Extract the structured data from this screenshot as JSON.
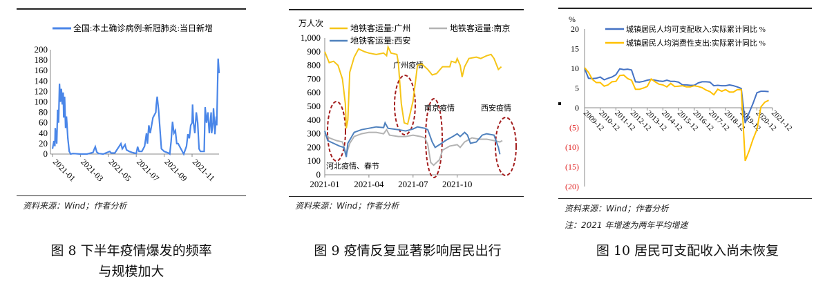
{
  "figures": [
    {
      "caption_line1": "图 8  下半年疫情爆发的频率",
      "caption_line2": "与规模加大",
      "source": "资料来源：Wind；作者分析"
    },
    {
      "caption_line1": "图 9    疫情反复显著影响居民出行",
      "source": "资料来源：Wind；作者分析"
    },
    {
      "caption_line1": "图 10  居民可支配收入尚未恢复",
      "source": "资料来源：Wind；作者分析",
      "note": "注：2021 年增速为两年平均增速"
    }
  ],
  "chart_data": [
    {
      "type": "line",
      "legend": "top-center",
      "ylim": [
        0,
        200
      ],
      "yticks": [
        "0",
        "20",
        "40",
        "60",
        "80",
        "100",
        "120",
        "140",
        "160",
        "180",
        "200"
      ],
      "xticks": [
        "2021-01",
        "2021-03",
        "2021-05",
        "2021-07",
        "2021-09",
        "2021-11"
      ],
      "grid": false,
      "series": [
        {
          "name": "全国:本土确诊病例:新冠肺炎:当日新增",
          "color": "#4a86e8",
          "points": [
            [
              "2021-01-01",
              10
            ],
            [
              "2021-01-04",
              25
            ],
            [
              "2021-01-06",
              15
            ],
            [
              "2021-01-07",
              50
            ],
            [
              "2021-01-10",
              20
            ],
            [
              "2021-01-12",
              85
            ],
            [
              "2021-01-14",
              60
            ],
            [
              "2021-01-16",
              135
            ],
            [
              "2021-01-18",
              100
            ],
            [
              "2021-01-20",
              125
            ],
            [
              "2021-01-22",
              95
            ],
            [
              "2021-01-24",
              118
            ],
            [
              "2021-01-25",
              70
            ],
            [
              "2021-01-27",
              110
            ],
            [
              "2021-01-29",
              50
            ],
            [
              "2021-02-01",
              72
            ],
            [
              "2021-02-04",
              30
            ],
            [
              "2021-02-07",
              5
            ],
            [
              "2021-02-10",
              0
            ],
            [
              "2021-02-15",
              1
            ],
            [
              "2021-03-01",
              0
            ],
            [
              "2021-03-15",
              0
            ],
            [
              "2021-03-28",
              3
            ],
            [
              "2021-04-01",
              10
            ],
            [
              "2021-04-03",
              14
            ],
            [
              "2021-04-06",
              4
            ],
            [
              "2021-04-10",
              1
            ],
            [
              "2021-04-20",
              0
            ],
            [
              "2021-05-04",
              5
            ],
            [
              "2021-05-07",
              2
            ],
            [
              "2021-05-15",
              2
            ],
            [
              "2021-05-28",
              20
            ],
            [
              "2021-06-01",
              10
            ],
            [
              "2021-06-07",
              18
            ],
            [
              "2021-06-10",
              8
            ],
            [
              "2021-06-16",
              5
            ],
            [
              "2021-06-22",
              3
            ],
            [
              "2021-07-01",
              1
            ],
            [
              "2021-07-04",
              14
            ],
            [
              "2021-07-07",
              5
            ],
            [
              "2021-07-13",
              5
            ],
            [
              "2021-07-19",
              15
            ],
            [
              "2021-07-23",
              40
            ],
            [
              "2021-07-25",
              20
            ],
            [
              "2021-07-28",
              55
            ],
            [
              "2021-08-01",
              40
            ],
            [
              "2021-08-07",
              70
            ],
            [
              "2021-08-13",
              80
            ],
            [
              "2021-08-14",
              95
            ],
            [
              "2021-08-16",
              110
            ],
            [
              "2021-08-19",
              85
            ],
            [
              "2021-08-25",
              10
            ],
            [
              "2021-09-01",
              5
            ],
            [
              "2021-09-10",
              2
            ],
            [
              "2021-09-13",
              0
            ],
            [
              "2021-09-16",
              25
            ],
            [
              "2021-09-19",
              62
            ],
            [
              "2021-09-22",
              40
            ],
            [
              "2021-09-25",
              45
            ],
            [
              "2021-09-28",
              20
            ],
            [
              "2021-10-01",
              20
            ],
            [
              "2021-10-07",
              10
            ],
            [
              "2021-10-13",
              0
            ],
            [
              "2021-10-19",
              15
            ],
            [
              "2021-10-22",
              38
            ],
            [
              "2021-10-25",
              30
            ],
            [
              "2021-10-28",
              55
            ],
            [
              "2021-11-01",
              60
            ],
            [
              "2021-11-02",
              95
            ],
            [
              "2021-11-04",
              60
            ],
            [
              "2021-11-07",
              40
            ],
            [
              "2021-11-10",
              80
            ],
            [
              "2021-11-13",
              60
            ],
            [
              "2021-11-16",
              10
            ],
            [
              "2021-11-19",
              5
            ],
            [
              "2021-11-27",
              5
            ],
            [
              "2021-11-29",
              90
            ],
            [
              "2021-12-02",
              60
            ],
            [
              "2021-12-05",
              80
            ],
            [
              "2021-12-08",
              40
            ],
            [
              "2021-12-12",
              80
            ],
            [
              "2021-12-13",
              40
            ],
            [
              "2021-12-16",
              60
            ],
            [
              "2021-12-17",
              88
            ],
            [
              "2021-12-19",
              60
            ],
            [
              "2021-12-20",
              38
            ],
            [
              "2021-12-23",
              72
            ],
            [
              "2021-12-24",
              55
            ],
            [
              "2021-12-26",
              140
            ],
            [
              "2021-12-27",
              183
            ],
            [
              "2021-12-29",
              155
            ]
          ]
        }
      ]
    },
    {
      "type": "line",
      "ylabel": "万人次",
      "legend": "top",
      "ylim": [
        0,
        1000
      ],
      "yticks": [
        "0",
        "100",
        "200",
        "300",
        "400",
        "500",
        "600",
        "700",
        "800",
        "900",
        "1,000"
      ],
      "xticks": [
        "2021-01",
        "2021-04",
        "2021-07",
        "2021-10"
      ],
      "grid": false,
      "annotations": [
        "广州疫情",
        "南京疫情",
        "西安疫情",
        "河北疫情、春节"
      ],
      "annotation_color": "#a31d1d",
      "series": [
        {
          "name": "地铁客运量:广州",
          "color": "#f5c518",
          "points": [
            [
              "2021-01-01",
              900
            ],
            [
              "2021-01-10",
              820
            ],
            [
              "2021-01-19",
              830
            ],
            [
              "2021-01-28",
              800
            ],
            [
              "2021-02-07",
              700
            ],
            [
              "2021-02-13",
              520
            ],
            [
              "2021-02-15",
              340
            ],
            [
              "2021-02-18",
              400
            ],
            [
              "2021-02-22",
              750
            ],
            [
              "2021-03-01",
              860
            ],
            [
              "2021-03-10",
              920
            ],
            [
              "2021-03-22",
              900
            ],
            [
              "2021-04-01",
              890
            ],
            [
              "2021-04-16",
              880
            ],
            [
              "2021-05-01",
              890
            ],
            [
              "2021-05-07",
              870
            ],
            [
              "2021-05-10",
              935
            ],
            [
              "2021-05-16",
              890
            ],
            [
              "2021-05-28",
              880
            ],
            [
              "2021-06-01",
              820
            ],
            [
              "2021-06-07",
              520
            ],
            [
              "2021-06-13",
              380
            ],
            [
              "2021-06-20",
              370
            ],
            [
              "2021-07-01",
              540
            ],
            [
              "2021-07-10",
              800
            ],
            [
              "2021-07-19",
              810
            ],
            [
              "2021-08-01",
              770
            ],
            [
              "2021-08-10",
              730
            ],
            [
              "2021-08-19",
              740
            ],
            [
              "2021-09-01",
              790
            ],
            [
              "2021-09-16",
              790
            ],
            [
              "2021-09-19",
              830
            ],
            [
              "2021-09-28",
              820
            ],
            [
              "2021-10-01",
              850
            ],
            [
              "2021-10-07",
              800
            ],
            [
              "2021-10-11",
              715
            ],
            [
              "2021-10-16",
              790
            ],
            [
              "2021-10-25",
              850
            ],
            [
              "2021-11-10",
              860
            ],
            [
              "2021-11-19",
              850
            ],
            [
              "2021-12-01",
              870
            ],
            [
              "2021-12-10",
              880
            ],
            [
              "2021-12-16",
              850
            ],
            [
              "2021-12-25",
              770
            ],
            [
              "2021-12-31",
              790
            ]
          ]
        },
        {
          "name": "地铁客运量:南京",
          "color": "#b3b3b3",
          "points": [
            [
              "2021-01-01",
              300
            ],
            [
              "2021-01-10",
              270
            ],
            [
              "2021-01-25",
              250
            ],
            [
              "2021-02-07",
              240
            ],
            [
              "2021-02-15",
              150
            ],
            [
              "2021-02-22",
              230
            ],
            [
              "2021-03-01",
              280
            ],
            [
              "2021-03-16",
              300
            ],
            [
              "2021-04-01",
              310
            ],
            [
              "2021-04-16",
              310
            ],
            [
              "2021-05-01",
              300
            ],
            [
              "2021-05-07",
              330
            ],
            [
              "2021-05-13",
              290
            ],
            [
              "2021-06-01",
              280
            ],
            [
              "2021-06-16",
              280
            ],
            [
              "2021-07-01",
              290
            ],
            [
              "2021-07-16",
              280
            ],
            [
              "2021-07-25",
              270
            ],
            [
              "2021-08-01",
              220
            ],
            [
              "2021-08-07",
              90
            ],
            [
              "2021-08-13",
              70
            ],
            [
              "2021-08-25",
              110
            ],
            [
              "2021-09-01",
              180
            ],
            [
              "2021-09-16",
              210
            ],
            [
              "2021-10-01",
              220
            ],
            [
              "2021-10-07",
              200
            ],
            [
              "2021-10-16",
              240
            ],
            [
              "2021-11-01",
              270
            ],
            [
              "2021-11-16",
              260
            ],
            [
              "2021-12-01",
              260
            ],
            [
              "2021-12-16",
              250
            ],
            [
              "2021-12-28",
              240
            ],
            [
              "2022-01-03",
              250
            ]
          ]
        },
        {
          "name": "地铁客运量:西安",
          "color": "#4f81bd",
          "points": [
            [
              "2021-01-01",
              320
            ],
            [
              "2021-01-07",
              250
            ],
            [
              "2021-01-19",
              230
            ],
            [
              "2021-02-01",
              210
            ],
            [
              "2021-02-10",
              200
            ],
            [
              "2021-02-15",
              130
            ],
            [
              "2021-02-18",
              230
            ],
            [
              "2021-03-01",
              310
            ],
            [
              "2021-03-16",
              330
            ],
            [
              "2021-04-01",
              340
            ],
            [
              "2021-04-16",
              350
            ],
            [
              "2021-05-01",
              345
            ],
            [
              "2021-05-04",
              380
            ],
            [
              "2021-05-10",
              340
            ],
            [
              "2021-06-01",
              330
            ],
            [
              "2021-06-16",
              320
            ],
            [
              "2021-07-01",
              335
            ],
            [
              "2021-07-10",
              350
            ],
            [
              "2021-07-25",
              340
            ],
            [
              "2021-08-01",
              330
            ],
            [
              "2021-08-10",
              240
            ],
            [
              "2021-08-16",
              200
            ],
            [
              "2021-08-25",
              220
            ],
            [
              "2021-09-07",
              250
            ],
            [
              "2021-09-22",
              280
            ],
            [
              "2021-10-01",
              300
            ],
            [
              "2021-10-07",
              280
            ],
            [
              "2021-10-16",
              310
            ],
            [
              "2021-10-22",
              290
            ],
            [
              "2021-10-28",
              230
            ],
            [
              "2021-11-10",
              240
            ],
            [
              "2021-11-22",
              290
            ],
            [
              "2021-12-01",
              300
            ],
            [
              "2021-12-16",
              290
            ],
            [
              "2021-12-25",
              200
            ],
            [
              "2021-12-28",
              150
            ]
          ]
        }
      ]
    },
    {
      "type": "line",
      "ylabel": "%",
      "legend": "top-right",
      "ylim": [
        -20,
        20
      ],
      "yticks": [
        "20",
        "15",
        "10",
        "5",
        "0",
        "(5)",
        "(10)",
        "(15)",
        "(20)"
      ],
      "negative_tick_color": "#e02020",
      "xticks": [
        "2009-12",
        "2010-12",
        "2011-12",
        "2012-12",
        "2013-12",
        "2014-12",
        "2015-12",
        "2016-12",
        "2017-12",
        "2018-12",
        "2019-12",
        "2020-12",
        "2021-12"
      ],
      "grid": false,
      "x_start": "2009-12",
      "x_step": "quarter",
      "series": [
        {
          "name": "城镇居民人均可支配收入:实际累计同比 %",
          "color": "#4472c4",
          "values": [
            10,
            7.5,
            7.4,
            7.5,
            7.8,
            7.1,
            7.5,
            7.8,
            8.4,
            9.9,
            9.7,
            9.8,
            9.6,
            6.6,
            6.5,
            6.7,
            7.0,
            7.2,
            7.0,
            6.8,
            6.7,
            7.0,
            6.7,
            6.7,
            6.5,
            5.8,
            5.8,
            5.7,
            5.7,
            6.3,
            6.6,
            6.6,
            6.5,
            5.6,
            5.7,
            5.6,
            5.6,
            5.8,
            5.6,
            5.3,
            4.9,
            -3.9,
            -1.3,
            1.1,
            3.8,
            4.2,
            4.2,
            4.1
          ]
        },
        {
          "name": "城镇居民人均消费性支出:实际累计同比 %",
          "color": "#ffc000",
          "values": [
            10.2,
            9.0,
            7.2,
            6.4,
            6.4,
            5.5,
            5.8,
            6.6,
            6.7,
            8.2,
            8.3,
            7.4,
            7.0,
            4.7,
            4.7,
            5.0,
            5.4,
            7.3,
            6.6,
            6.0,
            5.8,
            5.3,
            6.2,
            5.4,
            5.5,
            5.6,
            5.3,
            5.3,
            5.6,
            5.4,
            5.1,
            4.5,
            4.1,
            3.3,
            4.7,
            4.2,
            4.6,
            4.0,
            4.0,
            4.6,
            4.6,
            -13.5,
            -11.0,
            -8.0,
            -5.5,
            0.2,
            1.4,
            1.9
          ]
        }
      ]
    }
  ]
}
